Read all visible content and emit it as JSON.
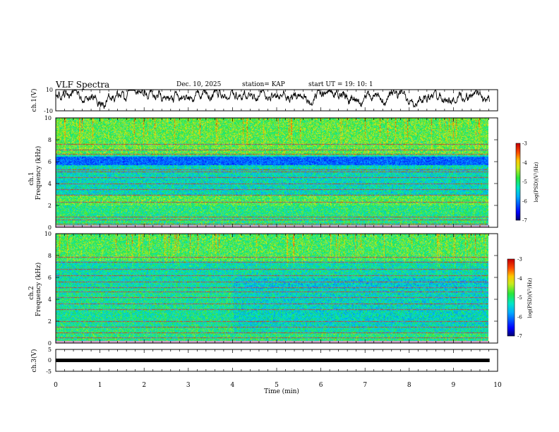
{
  "header": {
    "title": "VLF Spectra",
    "date": "Dec. 10, 2025",
    "station": "station= KAP",
    "start": "start  UT  =   19: 10: 1"
  },
  "chart_data": [
    {
      "type": "line",
      "name": "ch1-waveform",
      "ylabel": "ch.1(V)",
      "ylim": [
        -10,
        10
      ],
      "ytick_labels": [
        "10",
        "-10"
      ],
      "xlim": [
        0,
        10
      ],
      "x_data_end": 9.82,
      "baseline": 3.5,
      "amplitude": 4,
      "color": "#000000"
    },
    {
      "type": "heatmap",
      "name": "ch1-spectrogram",
      "ylabel_line1": "ch.1",
      "ylabel_line2": "Frequency (kHz)",
      "ylim": [
        0,
        10
      ],
      "ytick_labels": [
        "0",
        "2",
        "4",
        "6",
        "8",
        "10"
      ],
      "xlim": [
        0,
        10
      ],
      "x_data_end": 9.82,
      "quiet_band_khz": [
        5.7,
        6.5
      ],
      "hum_lines_khz": [
        0.3,
        0.7,
        1.0,
        2.3,
        3.0,
        3.5,
        4.0,
        4.6,
        5.1,
        5.3,
        6.7,
        7.1,
        7.6
      ],
      "colorbar": {
        "label": "log(PSD)(V²/Hz)",
        "range": [
          -7,
          -3
        ],
        "tick_labels": [
          "-3",
          "-4",
          "-5",
          "-6",
          "-7"
        ]
      }
    },
    {
      "type": "heatmap",
      "name": "ch2-spectrogram",
      "ylabel_line1": "ch.2",
      "ylabel_line2": "Frequency (kHz)",
      "ylim": [
        0,
        10
      ],
      "ytick_labels": [
        "0",
        "2",
        "4",
        "6",
        "8",
        "10"
      ],
      "xlim": [
        0,
        10
      ],
      "x_data_end": 9.82,
      "hum_lines_khz": [
        0.2,
        0.5,
        1.0,
        1.5,
        2.0,
        3.1,
        3.6,
        4.2,
        4.7,
        5.1,
        5.6,
        6.2,
        6.8,
        7.4,
        7.9
      ],
      "colorbar": {
        "label": "log(PSD)(V²/Hz)",
        "range": [
          -7,
          -3
        ],
        "tick_labels": [
          "-3",
          "-4",
          "-5",
          "-6",
          "-7"
        ]
      }
    },
    {
      "type": "line",
      "name": "ch3-signal",
      "ylabel": "ch.3(V)",
      "ylim": [
        -5,
        5
      ],
      "ytick_labels": [
        "5",
        "0",
        "-5"
      ],
      "xlim": [
        0,
        10
      ],
      "x_data_end": 9.82,
      "value": 0,
      "color": "#000000"
    }
  ],
  "x_axis": {
    "label": "Time  (min)",
    "ticks": [
      0,
      1,
      2,
      3,
      4,
      5,
      6,
      7,
      8,
      9,
      10
    ],
    "tick_labels": [
      "0",
      "1",
      "2",
      "3",
      "4",
      "5",
      "6",
      "7",
      "8",
      "9",
      "10"
    ]
  }
}
